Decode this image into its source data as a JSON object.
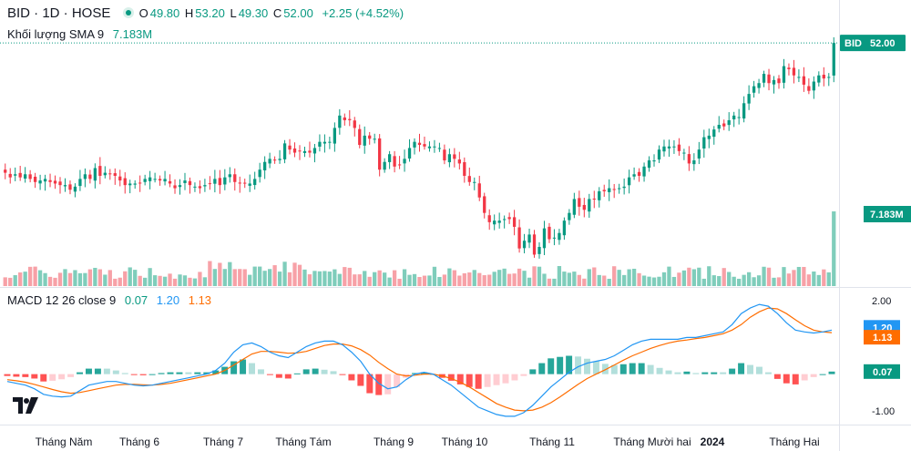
{
  "header": {
    "symbol": "BID · 1D · HOSE",
    "o_label": "O",
    "o": "49.80",
    "h_label": "H",
    "h": "53.20",
    "l_label": "L",
    "l": "49.30",
    "c_label": "C",
    "c": "52.00",
    "change": "+2.25 (+4.52%)"
  },
  "volume_legend": {
    "label": "Khối lượng SMA 9",
    "value": "7.183M"
  },
  "macd_legend": {
    "label": "MACD 12 26 close 9",
    "hist": "0.07",
    "macd": "1.20",
    "signal": "1.13"
  },
  "price_tag": {
    "symbol": "BID",
    "value": "52.00"
  },
  "volume_tag": "7.183M",
  "macd_tags": {
    "macd": "1.20",
    "signal": "1.13",
    "hist": "0.07"
  },
  "macd_axis": [
    "2.00",
    "1.00",
    "-1.00"
  ],
  "x_axis": [
    "Tháng Năm",
    "Tháng 6",
    "Tháng 7",
    "Tháng Tám",
    "Tháng 9",
    "Tháng 10",
    "Tháng 11",
    "Tháng Mười hai",
    "2024",
    "Tháng Hai"
  ],
  "colors": {
    "up": "#089981",
    "down": "#f23645",
    "vol_up": "#7fcdbb",
    "vol_down": "#f7a1a7",
    "macd": "#2196f3",
    "signal": "#ff6d00",
    "hist_up_strong": "#26a69a",
    "hist_up_weak": "#b2dfdb",
    "hist_down_strong": "#ff5252",
    "hist_down_weak": "#ffcdd2"
  },
  "chart_data": {
    "type": "candlestick",
    "close": [
      43.6,
      43.3,
      43.5,
      43.3,
      43.5,
      43.2,
      43.0,
      43.1,
      43.2,
      43.0,
      42.9,
      42.8,
      42.8,
      42.5,
      42.7,
      43.2,
      43.5,
      43.2,
      43.9,
      43.4,
      43.6,
      43.5,
      43.4,
      43.1,
      42.8,
      42.9,
      42.9,
      42.9,
      43.2,
      43.3,
      43.2,
      43.1,
      43.2,
      42.9,
      42.6,
      42.8,
      43.1,
      42.8,
      42.7,
      42.6,
      42.8,
      42.9,
      43.2,
      42.8,
      43.3,
      43.5,
      43.0,
      42.9,
      42.9,
      42.9,
      43.2,
      43.8,
      44.3,
      44.5,
      44.4,
      44.5,
      45.5,
      45.1,
      44.9,
      45.0,
      45.0,
      44.9,
      45.2,
      45.6,
      45.6,
      45.6,
      46.5,
      47.3,
      47.0,
      47.0,
      46.5,
      45.4,
      46.0,
      45.8,
      45.8,
      43.8,
      44.3,
      44.8,
      44.0,
      44.1,
      44.5,
      45.2,
      45.6,
      45.4,
      45.3,
      45.3,
      45.3,
      45.2,
      44.4,
      44.8,
      44.5,
      44.2,
      43.4,
      43.0,
      43.0,
      42.0,
      41.0,
      40.4,
      40.5,
      40.5,
      40.6,
      40.6,
      40.1,
      38.7,
      39.2,
      39.6,
      38.3,
      38.8,
      40.0,
      39.3,
      39.4,
      39.7,
      40.5,
      41.0,
      41.9,
      41.4,
      41.2,
      41.9,
      41.9,
      42.4,
      42.4,
      42.6,
      42.5,
      42.6,
      42.7,
      43.3,
      43.5,
      43.4,
      44.0,
      44.4,
      44.4,
      45.1,
      45.3,
      45.3,
      45.3,
      45.0,
      44.9,
      44.2,
      44.4,
      45.1,
      45.9,
      46.0,
      46.4,
      46.7,
      46.6,
      47.0,
      47.3,
      47.2,
      48.1,
      48.7,
      49.2,
      49.4,
      50.0,
      49.4,
      49.6,
      49.4,
      50.5,
      50.3,
      49.9,
      49.8,
      49.3,
      48.9,
      49.5,
      49.9,
      49.7,
      49.8,
      52.0
    ],
    "volume_sma9_last": "7.183M",
    "macd": [
      -0.2,
      -0.25,
      -0.3,
      -0.4,
      -0.55,
      -0.6,
      -0.62,
      -0.6,
      -0.45,
      -0.3,
      -0.25,
      -0.2,
      -0.2,
      -0.25,
      -0.3,
      -0.32,
      -0.3,
      -0.25,
      -0.2,
      -0.15,
      -0.1,
      -0.05,
      0.0,
      0.1,
      0.3,
      0.6,
      0.8,
      0.85,
      0.75,
      0.6,
      0.5,
      0.45,
      0.6,
      0.75,
      0.85,
      0.9,
      0.9,
      0.8,
      0.6,
      0.35,
      0.0,
      -0.25,
      -0.4,
      -0.35,
      -0.15,
      0.0,
      0.05,
      0.0,
      -0.15,
      -0.3,
      -0.5,
      -0.7,
      -0.9,
      -1.0,
      -1.1,
      -1.15,
      -1.15,
      -1.05,
      -0.85,
      -0.6,
      -0.35,
      -0.15,
      0.05,
      0.2,
      0.3,
      0.35,
      0.4,
      0.5,
      0.65,
      0.8,
      0.9,
      0.95,
      0.95,
      0.95,
      0.95,
      1.0,
      1.0,
      1.05,
      1.1,
      1.15,
      1.35,
      1.65,
      1.8,
      1.9,
      1.85,
      1.65,
      1.4,
      1.2,
      1.15,
      1.12,
      1.15,
      1.2
    ],
    "signal": [
      -0.15,
      -0.18,
      -0.22,
      -0.28,
      -0.35,
      -0.42,
      -0.48,
      -0.52,
      -0.5,
      -0.45,
      -0.4,
      -0.35,
      -0.3,
      -0.28,
      -0.28,
      -0.29,
      -0.3,
      -0.28,
      -0.25,
      -0.2,
      -0.15,
      -0.1,
      -0.05,
      0.0,
      0.1,
      0.25,
      0.4,
      0.55,
      0.62,
      0.62,
      0.6,
      0.57,
      0.58,
      0.62,
      0.7,
      0.78,
      0.82,
      0.82,
      0.77,
      0.67,
      0.52,
      0.32,
      0.15,
      0.0,
      -0.05,
      -0.03,
      0.0,
      0.0,
      -0.05,
      -0.12,
      -0.22,
      -0.35,
      -0.5,
      -0.65,
      -0.8,
      -0.9,
      -0.98,
      -1.0,
      -0.98,
      -0.9,
      -0.78,
      -0.62,
      -0.45,
      -0.28,
      -0.12,
      0.0,
      0.12,
      0.25,
      0.38,
      0.5,
      0.6,
      0.7,
      0.78,
      0.85,
      0.9,
      0.93,
      0.97,
      1.0,
      1.05,
      1.1,
      1.2,
      1.35,
      1.55,
      1.7,
      1.8,
      1.78,
      1.65,
      1.48,
      1.32,
      1.2,
      1.15,
      1.13
    ],
    "hist_last": 0.07,
    "macd_last": 1.2,
    "signal_last": 1.13,
    "price_last": 52.0
  }
}
